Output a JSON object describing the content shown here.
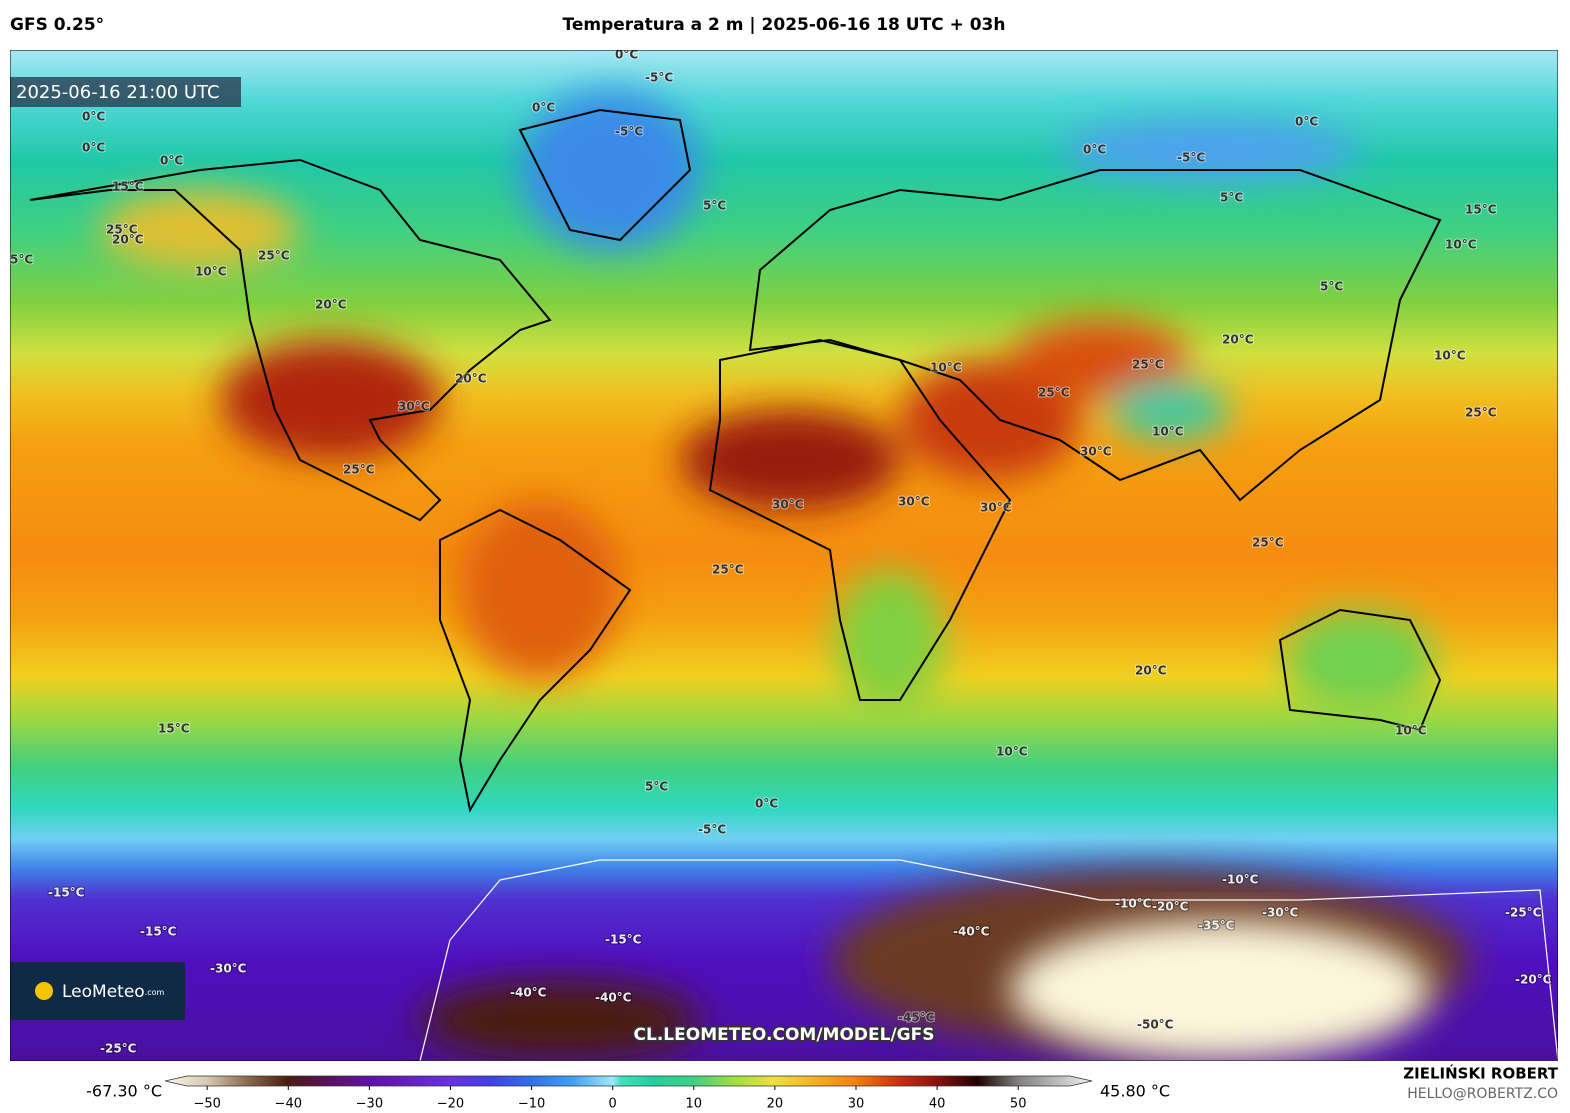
{
  "header": {
    "model": "GFS 0.25°",
    "title": "Temperatura a 2 m | 2025-06-16 18 UTC + 03h"
  },
  "map": {
    "valid_time": "2025-06-16 21:00 UTC",
    "watermark": "CL.LEOMETEO.COM/MODEL/GFS",
    "logo": {
      "name": "LeoMeteo",
      "suffix": ".com"
    },
    "contour_labels": [
      "0°C",
      "-5°C",
      "0°C",
      "-5°C",
      "0°C",
      "0°C",
      "0°C",
      "15°C",
      "25°C",
      "20°C",
      "25°C",
      "20°C",
      "10°C",
      "5°C",
      "5°C",
      "5°C",
      "0°C",
      "-5°C",
      "0°C",
      "15°C",
      "10°C",
      "5°C",
      "10°C",
      "20°C",
      "30°C",
      "25°C",
      "30°C",
      "30°C",
      "30°C",
      "25°C",
      "10°C",
      "25°C",
      "30°C",
      "10°C",
      "25°C",
      "20°C",
      "25°C",
      "25°C",
      "20°C",
      "15°C",
      "10°C",
      "5°C",
      "0°C",
      "-5°C",
      "-15°C",
      "-15°C",
      "-30°C",
      "-40°C",
      "-40°C",
      "-15°C",
      "-40°C",
      "-45°C",
      "-50°C",
      "-35°C",
      "-30°C",
      "-20°C",
      "-10°C",
      "-25°C",
      "-20°C",
      "-25°C",
      "-10°C",
      "10°C"
    ]
  },
  "colorbar": {
    "min_label": "-67.30 °C",
    "max_label": "45.80 °C",
    "lim": [
      -55.2,
      59.1
    ],
    "ticks": [
      {
        "value": -50,
        "label": "−50"
      },
      {
        "value": -40,
        "label": "−40"
      },
      {
        "value": -30,
        "label": "−30"
      },
      {
        "value": -20,
        "label": "−20"
      },
      {
        "value": -10,
        "label": "−10"
      },
      0,
      10,
      20,
      30,
      40,
      50
    ],
    "color_stops": [
      {
        "value": -55,
        "color": "#f8f4e8"
      },
      {
        "value": -50,
        "color": "#d8c8b0"
      },
      {
        "value": -45,
        "color": "#8a6a4a"
      },
      {
        "value": -40,
        "color": "#4a1a10"
      },
      {
        "value": -35,
        "color": "#5a1060"
      },
      {
        "value": -30,
        "color": "#6010a8"
      },
      {
        "value": -20,
        "color": "#6a30e0"
      },
      {
        "value": -15,
        "color": "#4040e8"
      },
      {
        "value": -10,
        "color": "#3070e8"
      },
      {
        "value": -5,
        "color": "#40a0f0"
      },
      {
        "value": 0,
        "color": "#a0e8f8"
      },
      {
        "value": 1,
        "color": "#40e0c0"
      },
      {
        "value": 5,
        "color": "#20d0a0"
      },
      {
        "value": 10,
        "color": "#40d080"
      },
      {
        "value": 15,
        "color": "#a0e040"
      },
      {
        "value": 20,
        "color": "#f0e040"
      },
      {
        "value": 25,
        "color": "#f5b020"
      },
      {
        "value": 30,
        "color": "#f08010"
      },
      {
        "value": 35,
        "color": "#d03010"
      },
      {
        "value": 40,
        "color": "#8a1010"
      },
      {
        "value": 45,
        "color": "#200000"
      },
      {
        "value": 50,
        "color": "#808080"
      },
      {
        "value": 59,
        "color": "#f0f0f0"
      }
    ]
  },
  "credits": {
    "author": "ZIELIŃSKI ROBERT",
    "email": "HELLO@ROBERTZ.CO"
  }
}
